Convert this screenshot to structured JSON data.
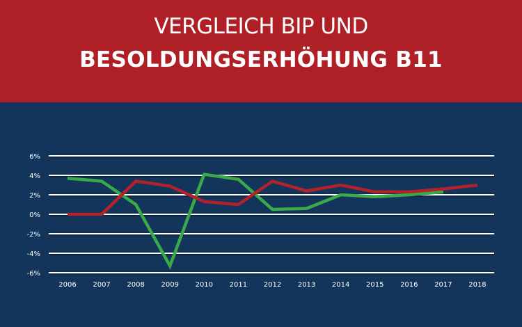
{
  "header": {
    "title_line1": "VERGLEICH BIP UND",
    "title_line2": "BESOLDUNGSERHÖHUNG B11"
  },
  "colors": {
    "header_bg": "#AF2026",
    "chart_bg": "#13355C",
    "gridline": "#FFFFFF"
  },
  "chart_data": {
    "type": "line",
    "title": "VERGLEICH BIP UND BESOLDUNGSERHÖHUNG B11",
    "xlabel": "",
    "ylabel": "",
    "x": [
      "2006",
      "2007",
      "2008",
      "2009",
      "2010",
      "2011",
      "2012",
      "2013",
      "2014",
      "2015",
      "2016",
      "2017",
      "2018"
    ],
    "yticks": [
      "6%",
      "4%",
      "2%",
      "0%",
      "-2%",
      "-4%",
      "-6%"
    ],
    "ytick_values": [
      6,
      4,
      2,
      0,
      -2,
      -4,
      -6
    ],
    "ylim": [
      -6,
      6
    ],
    "grid": true,
    "legend": "none",
    "series": [
      {
        "name": "BIP",
        "color": "#3AAA48",
        "values": [
          3.7,
          3.4,
          1.0,
          -5.3,
          4.1,
          3.6,
          0.5,
          0.6,
          2.0,
          1.8,
          2.0,
          2.3,
          null
        ]
      },
      {
        "name": "Besoldungserhöhung B11",
        "color": "#B1222A",
        "values": [
          0.0,
          0.0,
          3.4,
          2.9,
          1.3,
          1.0,
          3.4,
          2.4,
          3.0,
          2.3,
          2.3,
          2.6,
          3.0
        ]
      }
    ]
  }
}
